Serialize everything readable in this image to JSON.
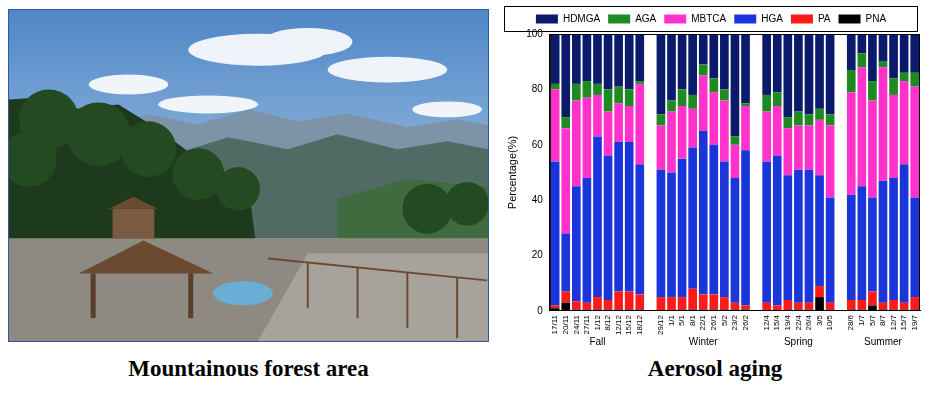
{
  "photo_caption": "Mountainous forest area",
  "chart_data": {
    "type": "bar",
    "stacked": true,
    "caption": "Aerosol aging",
    "y_label": "Percentage(%)",
    "categories": [
      "17/11",
      "20/11",
      "24/11",
      "27/11",
      "1/12",
      "8/12",
      "12/12",
      "15/12",
      "18/12",
      null,
      "29/12",
      "1/1",
      "5/1",
      "8/1",
      "22/1",
      "26/1",
      "5/2",
      "23/2",
      "26/2",
      null,
      "12/4",
      "15/4",
      "19/4",
      "22/4",
      "26/4",
      "3/5",
      "10/5",
      null,
      "28/6",
      "1/7",
      "5/7",
      "8/7",
      "12/7",
      "15/7",
      "19/7"
    ],
    "groups": [
      "Fall",
      "Fall",
      "Fall",
      "Fall",
      "Fall",
      "Fall",
      "Fall",
      "Fall",
      "Fall",
      null,
      "Winter",
      "Winter",
      "Winter",
      "Winter",
      "Winter",
      "Winter",
      "Winter",
      "Winter",
      "Winter",
      null,
      "Spring",
      "Spring",
      "Spring",
      "Spring",
      "Spring",
      "Spring",
      "Spring",
      null,
      "Summer",
      "Summer",
      "Summer",
      "Summer",
      "Summer",
      "Summer",
      "Summer"
    ],
    "series": [
      {
        "name": "HDMGA",
        "color": "#0b1a6b",
        "values": [
          18,
          30,
          18,
          17,
          18,
          20,
          19,
          20,
          17,
          null,
          29,
          24,
          20,
          22,
          11,
          16,
          20,
          37,
          25,
          null,
          22,
          21,
          30,
          28,
          29,
          27,
          29,
          null,
          13,
          7,
          17,
          10,
          16,
          14,
          14
        ]
      },
      {
        "name": "AGA",
        "color": "#1f8a22",
        "values": [
          2,
          4,
          6,
          6,
          4,
          8,
          6,
          6,
          1,
          null,
          4,
          4,
          6,
          5,
          4,
          5,
          4,
          3,
          1,
          null,
          6,
          5,
          4,
          5,
          4,
          4,
          4,
          null,
          8,
          5,
          7,
          2,
          6,
          3,
          5
        ]
      },
      {
        "name": "MBTCA",
        "color": "#ff33cc",
        "values": [
          26,
          38,
          31,
          29,
          15,
          16,
          14,
          13,
          29,
          null,
          16,
          22,
          19,
          14,
          20,
          19,
          22,
          12,
          16,
          null,
          18,
          18,
          17,
          16,
          16,
          20,
          26,
          null,
          37,
          43,
          35,
          41,
          30,
          30,
          40
        ]
      },
      {
        "name": "HGA",
        "color": "#1a35d9",
        "values": [
          52,
          21,
          41.5,
          45,
          58,
          52,
          54,
          54,
          47,
          null,
          46,
          45,
          50,
          51,
          59,
          54,
          49,
          45,
          56,
          null,
          51,
          54,
          45,
          48,
          48,
          40,
          38,
          null,
          38,
          41,
          34,
          44,
          44,
          50,
          36
        ]
      },
      {
        "name": "PA",
        "color": "#ff1a1a",
        "values": [
          1,
          4,
          3,
          2.5,
          4.5,
          3.5,
          6.5,
          6.5,
          5.5,
          null,
          5,
          5,
          4.5,
          7.5,
          5.5,
          5.5,
          4.5,
          2.5,
          1.5,
          null,
          3,
          2,
          3.5,
          2.5,
          2.5,
          4,
          2.5,
          null,
          3.5,
          3.5,
          5,
          2.5,
          3.5,
          2.5,
          4.5
        ]
      },
      {
        "name": "PNA",
        "color": "#000000",
        "values": [
          1,
          3,
          0.5,
          0.5,
          0.5,
          0.5,
          0.5,
          0.5,
          0.5,
          null,
          0,
          0,
          0.5,
          0.5,
          0.5,
          0.5,
          0.5,
          0.5,
          0.5,
          null,
          0,
          0,
          0.5,
          0.5,
          0.5,
          5,
          0.5,
          null,
          0.5,
          0.5,
          2,
          0.5,
          0.5,
          0.5,
          0.5
        ]
      }
    ],
    "ylim": [
      0,
      100
    ],
    "yticks": [
      0,
      20,
      40,
      60,
      80,
      100
    ],
    "grid": false,
    "legend": "top"
  }
}
